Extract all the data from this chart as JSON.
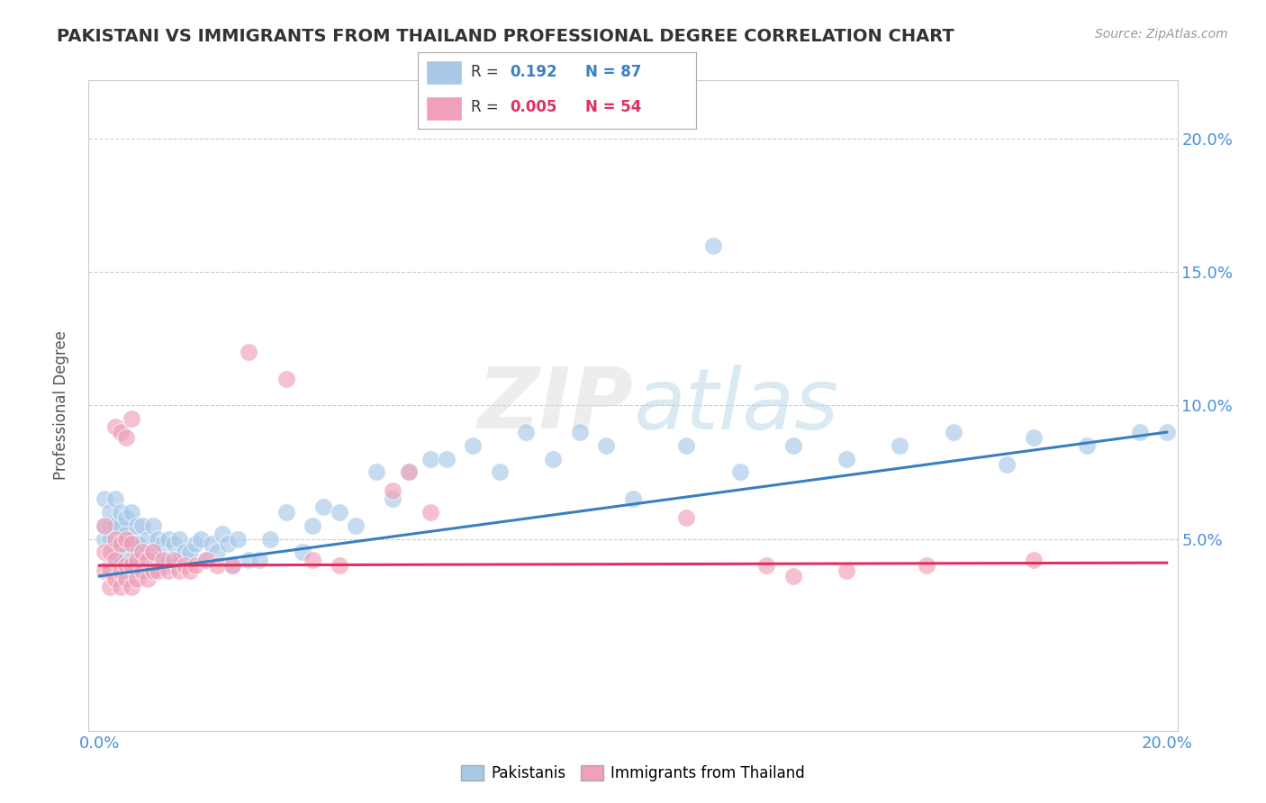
{
  "title": "PAKISTANI VS IMMIGRANTS FROM THAILAND PROFESSIONAL DEGREE CORRELATION CHART",
  "source": "Source: ZipAtlas.com",
  "ylabel": "Professional Degree",
  "xlabel": "",
  "xlim": [
    -0.002,
    0.202
  ],
  "ylim": [
    -0.022,
    0.222
  ],
  "series1_color": "#A8C8E8",
  "series2_color": "#F0A0B8",
  "series1_label": "Pakistanis",
  "series2_label": "Immigrants from Thailand",
  "series1_R": "0.192",
  "series1_N": "87",
  "series2_R": "0.005",
  "series2_N": "54",
  "trend1_color": "#3A7FC1",
  "trend2_color": "#E03060",
  "background_color": "#FFFFFF",
  "grid_color": "#CCCCCC",
  "title_color": "#333333",
  "watermark_text": "ZIPAtlas",
  "watermark_color": "#CCCCCC",
  "trend1_x0": 0.0,
  "trend1_y0": 0.036,
  "trend1_x1": 0.2,
  "trend1_y1": 0.09,
  "trend2_x0": 0.0,
  "trend2_y0": 0.04,
  "trend2_x1": 0.2,
  "trend2_y1": 0.041,
  "pakistanis_x": [
    0.001,
    0.001,
    0.001,
    0.002,
    0.002,
    0.002,
    0.002,
    0.003,
    0.003,
    0.003,
    0.003,
    0.004,
    0.004,
    0.004,
    0.004,
    0.005,
    0.005,
    0.005,
    0.005,
    0.006,
    0.006,
    0.006,
    0.007,
    0.007,
    0.007,
    0.008,
    0.008,
    0.008,
    0.009,
    0.009,
    0.01,
    0.01,
    0.01,
    0.011,
    0.011,
    0.012,
    0.012,
    0.013,
    0.013,
    0.014,
    0.014,
    0.015,
    0.015,
    0.016,
    0.017,
    0.018,
    0.019,
    0.02,
    0.021,
    0.022,
    0.023,
    0.024,
    0.025,
    0.026,
    0.028,
    0.03,
    0.032,
    0.035,
    0.038,
    0.04,
    0.042,
    0.045,
    0.048,
    0.052,
    0.055,
    0.058,
    0.062,
    0.065,
    0.07,
    0.075,
    0.08,
    0.085,
    0.09,
    0.095,
    0.1,
    0.11,
    0.115,
    0.12,
    0.13,
    0.14,
    0.15,
    0.16,
    0.17,
    0.175,
    0.185,
    0.195,
    0.2
  ],
  "pakistanis_y": [
    0.05,
    0.055,
    0.065,
    0.04,
    0.05,
    0.055,
    0.06,
    0.04,
    0.045,
    0.055,
    0.065,
    0.04,
    0.048,
    0.055,
    0.06,
    0.038,
    0.045,
    0.052,
    0.058,
    0.042,
    0.05,
    0.06,
    0.04,
    0.048,
    0.055,
    0.038,
    0.045,
    0.055,
    0.042,
    0.05,
    0.038,
    0.045,
    0.055,
    0.042,
    0.05,
    0.04,
    0.048,
    0.042,
    0.05,
    0.04,
    0.048,
    0.042,
    0.05,
    0.045,
    0.045,
    0.048,
    0.05,
    0.042,
    0.048,
    0.045,
    0.052,
    0.048,
    0.04,
    0.05,
    0.042,
    0.042,
    0.05,
    0.06,
    0.045,
    0.055,
    0.062,
    0.06,
    0.055,
    0.075,
    0.065,
    0.075,
    0.08,
    0.08,
    0.085,
    0.075,
    0.09,
    0.08,
    0.09,
    0.085,
    0.065,
    0.085,
    0.16,
    0.075,
    0.085,
    0.08,
    0.085,
    0.09,
    0.078,
    0.088,
    0.085,
    0.09,
    0.09
  ],
  "thailand_x": [
    0.001,
    0.001,
    0.001,
    0.002,
    0.002,
    0.002,
    0.003,
    0.003,
    0.003,
    0.004,
    0.004,
    0.004,
    0.005,
    0.005,
    0.005,
    0.006,
    0.006,
    0.006,
    0.007,
    0.007,
    0.008,
    0.008,
    0.009,
    0.009,
    0.01,
    0.01,
    0.011,
    0.012,
    0.013,
    0.014,
    0.015,
    0.016,
    0.017,
    0.018,
    0.02,
    0.022,
    0.025,
    0.028,
    0.035,
    0.04,
    0.045,
    0.055,
    0.058,
    0.062,
    0.11,
    0.125,
    0.13,
    0.14,
    0.155,
    0.175,
    0.003,
    0.004,
    0.005,
    0.006
  ],
  "thailand_y": [
    0.038,
    0.045,
    0.055,
    0.032,
    0.038,
    0.045,
    0.035,
    0.042,
    0.05,
    0.032,
    0.038,
    0.048,
    0.035,
    0.04,
    0.05,
    0.032,
    0.04,
    0.048,
    0.035,
    0.042,
    0.038,
    0.045,
    0.035,
    0.042,
    0.038,
    0.045,
    0.038,
    0.042,
    0.038,
    0.042,
    0.038,
    0.04,
    0.038,
    0.04,
    0.042,
    0.04,
    0.04,
    0.12,
    0.11,
    0.042,
    0.04,
    0.068,
    0.075,
    0.06,
    0.058,
    0.04,
    0.036,
    0.038,
    0.04,
    0.042,
    0.092,
    0.09,
    0.088,
    0.095
  ]
}
